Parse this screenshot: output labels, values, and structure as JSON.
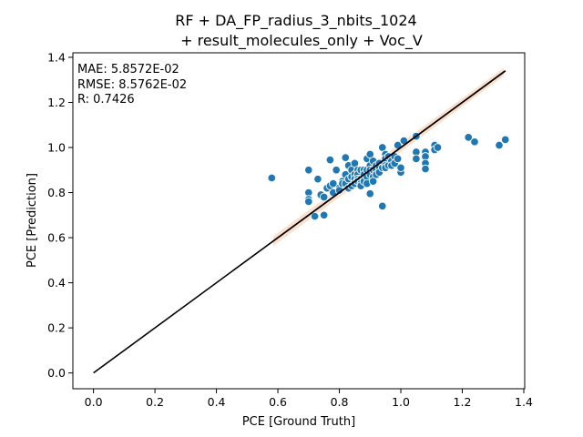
{
  "chart_data": {
    "type": "scatter",
    "title": [
      "RF + DA_FP_radius_3_nbits_1024",
      "+ result_molecules_only + Voc_V"
    ],
    "xlabel": "PCE [Ground Truth]",
    "ylabel": "PCE [Prediction]",
    "xlim": [
      -0.067,
      1.403
    ],
    "ylim": [
      -0.07,
      1.42
    ],
    "xticks": [
      0.0,
      0.2,
      0.4,
      0.6,
      0.8,
      1.0,
      1.2,
      1.4
    ],
    "yticks": [
      0.0,
      0.2,
      0.4,
      0.6,
      0.8,
      1.0,
      1.2,
      1.4
    ],
    "xtick_labels": [
      "0.0",
      "0.2",
      "0.4",
      "0.6",
      "0.8",
      "1.0",
      "1.2",
      "1.4"
    ],
    "ytick_labels": [
      "0.0",
      "0.2",
      "0.4",
      "0.6",
      "0.8",
      "1.0",
      "1.2",
      "1.4"
    ],
    "grid": false,
    "stats": [
      "MAE:  5.8572E-02",
      "RMSE: 8.5762E-02",
      "R:  0.7426"
    ],
    "colors": {
      "points": "#1f77b4",
      "line": "#000000",
      "band": "#f9d5bb"
    },
    "regression": {
      "x_range": [
        0.58,
        1.34
      ],
      "ci_range": [
        0.585,
        1.335
      ],
      "ci_halfwidth": [
        0.022,
        0.018
      ]
    },
    "identity_line": {
      "x": [
        0.0,
        1.34
      ],
      "y": [
        0.0,
        1.34
      ]
    },
    "series": [
      {
        "x": [
          0.58,
          0.7,
          0.7,
          0.7,
          0.7,
          0.72,
          0.73,
          0.74,
          0.75,
          0.75,
          0.76,
          0.77,
          0.77,
          0.78,
          0.78,
          0.79,
          0.8,
          0.8,
          0.81,
          0.81,
          0.82,
          0.82,
          0.82,
          0.83,
          0.83,
          0.83,
          0.84,
          0.84,
          0.84,
          0.85,
          0.85,
          0.85,
          0.85,
          0.86,
          0.86,
          0.86,
          0.86,
          0.87,
          0.87,
          0.87,
          0.87,
          0.88,
          0.88,
          0.88,
          0.88,
          0.89,
          0.89,
          0.89,
          0.89,
          0.9,
          0.9,
          0.9,
          0.9,
          0.9,
          0.91,
          0.91,
          0.91,
          0.91,
          0.92,
          0.92,
          0.92,
          0.93,
          0.93,
          0.93,
          0.94,
          0.94,
          0.94,
          0.95,
          0.95,
          0.95,
          0.95,
          0.96,
          0.96,
          0.97,
          0.97,
          0.98,
          0.98,
          0.99,
          0.99,
          1.0,
          1.0,
          1.01,
          1.05,
          1.05,
          1.05,
          1.08,
          1.08,
          1.08,
          1.08,
          1.11,
          1.11,
          1.12,
          1.22,
          1.24,
          1.32,
          1.34
        ],
        "y": [
          0.865,
          0.9,
          0.8,
          0.77,
          0.76,
          0.695,
          0.86,
          0.79,
          0.78,
          0.7,
          0.82,
          0.945,
          0.83,
          0.84,
          0.8,
          0.9,
          0.82,
          0.81,
          0.85,
          0.84,
          0.955,
          0.88,
          0.84,
          0.92,
          0.86,
          0.82,
          0.9,
          0.87,
          0.83,
          0.93,
          0.88,
          0.86,
          0.84,
          0.9,
          0.88,
          0.86,
          0.85,
          0.9,
          0.86,
          0.84,
          0.83,
          0.9,
          0.88,
          0.86,
          0.85,
          0.95,
          0.9,
          0.87,
          0.84,
          0.97,
          0.92,
          0.9,
          0.88,
          0.795,
          0.94,
          0.9,
          0.87,
          0.85,
          0.92,
          0.9,
          0.88,
          0.93,
          0.91,
          0.89,
          1.0,
          0.91,
          0.74,
          0.97,
          0.95,
          0.92,
          0.91,
          0.96,
          0.92,
          0.94,
          0.92,
          0.96,
          0.93,
          1.01,
          0.95,
          0.89,
          0.91,
          1.03,
          1.05,
          0.98,
          0.95,
          0.98,
          0.96,
          0.93,
          0.905,
          1.01,
          0.99,
          1.0,
          1.045,
          1.025,
          1.01,
          1.035
        ]
      }
    ]
  }
}
